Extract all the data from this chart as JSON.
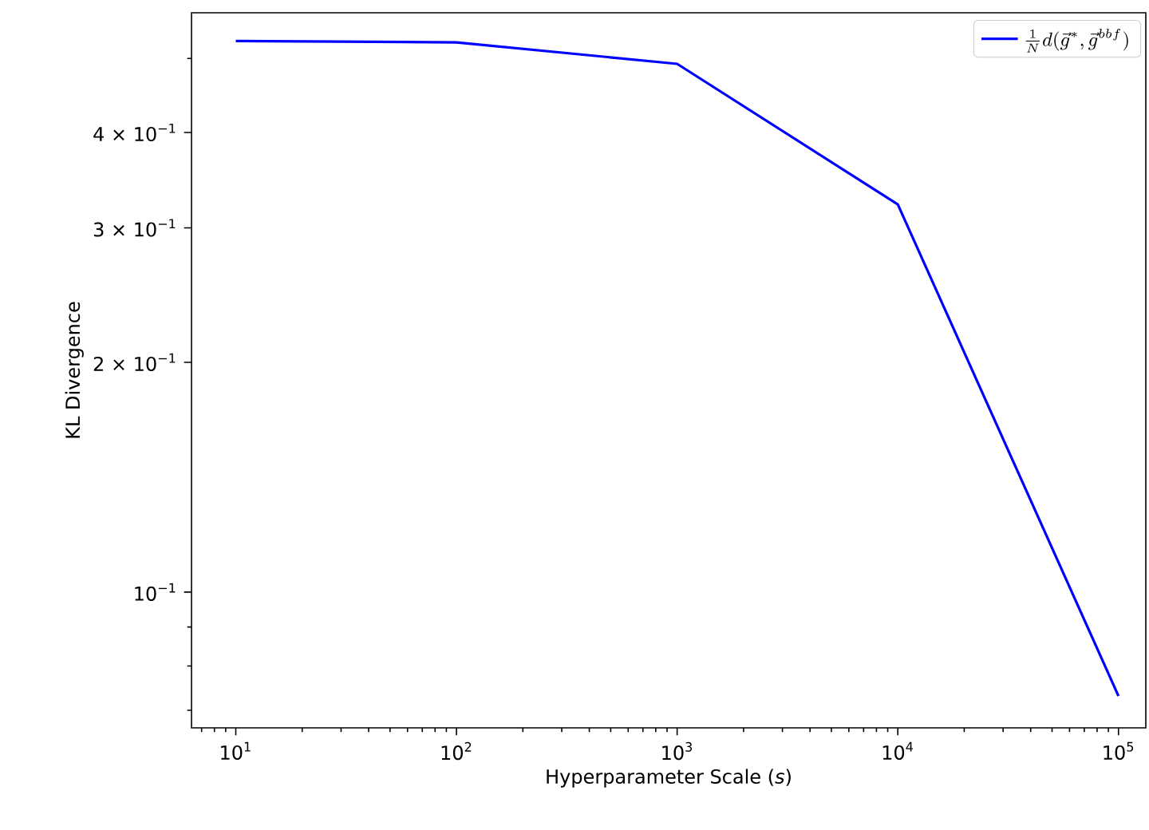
{
  "chart_data": {
    "type": "line",
    "xlabel": "Hyperparameter Scale (*s*)",
    "ylabel": "KL Divergence",
    "x": [
      10,
      100,
      1000,
      10000,
      100000
    ],
    "series": [
      {
        "name": "\\frac{1}{N}d(\\vec{g}^{*},\\vec{g}^{bbf})",
        "color": "#0000ff",
        "values": [
          0.527,
          0.525,
          0.492,
          0.322,
          0.0731
        ]
      }
    ],
    "log": "xy",
    "legend": "top right",
    "marker": "none",
    "line_style": "solid",
    "grid": false,
    "xlim": [
      6.3,
      133000
    ],
    "ylim": [
      0.0664,
      0.574
    ],
    "xticks": [
      {
        "value": 10,
        "label": "10$^{1}$"
      },
      {
        "value": 100,
        "label": "10$^{2}$"
      },
      {
        "value": 1000,
        "label": "10$^{3}$"
      },
      {
        "value": 10000,
        "label": "10$^{4}$"
      },
      {
        "value": 100000,
        "label": "10$^{5}$"
      },
      {
        "value": 7,
        "label": null
      },
      {
        "value": 8,
        "label": null
      },
      {
        "value": 9,
        "label": null
      },
      {
        "value": 20,
        "label": null
      },
      {
        "value": 30,
        "label": null
      },
      {
        "value": 40,
        "label": null
      },
      {
        "value": 50,
        "label": null
      },
      {
        "value": 60,
        "label": null
      },
      {
        "value": 70,
        "label": null
      },
      {
        "value": 80,
        "label": null
      },
      {
        "value": 90,
        "label": null
      },
      {
        "value": 200,
        "label": null
      },
      {
        "value": 300,
        "label": null
      },
      {
        "value": 400,
        "label": null
      },
      {
        "value": 500,
        "label": null
      },
      {
        "value": 600,
        "label": null
      },
      {
        "value": 700,
        "label": null
      },
      {
        "value": 800,
        "label": null
      },
      {
        "value": 900,
        "label": null
      },
      {
        "value": 2000,
        "label": null
      },
      {
        "value": 3000,
        "label": null
      },
      {
        "value": 4000,
        "label": null
      },
      {
        "value": 5000,
        "label": null
      },
      {
        "value": 6000,
        "label": null
      },
      {
        "value": 7000,
        "label": null
      },
      {
        "value": 8000,
        "label": null
      },
      {
        "value": 9000,
        "label": null
      },
      {
        "value": 20000,
        "label": null
      },
      {
        "value": 30000,
        "label": null
      },
      {
        "value": 40000,
        "label": null
      },
      {
        "value": 50000,
        "label": null
      },
      {
        "value": 60000,
        "label": null
      },
      {
        "value": 70000,
        "label": null
      },
      {
        "value": 80000,
        "label": null
      },
      {
        "value": 90000,
        "label": null
      }
    ],
    "yticks": [
      {
        "value": 0.1,
        "label": "10$^{−1}$"
      },
      {
        "value": 0.2,
        "label": "2 × 10$^{−1}$"
      },
      {
        "value": 0.3,
        "label": "3 × 10$^{−1}$"
      },
      {
        "value": 0.4,
        "label": "4 × 10$^{−1}$"
      },
      {
        "value": 0.07,
        "label": null
      },
      {
        "value": 0.08,
        "label": null
      },
      {
        "value": 0.09,
        "label": null
      },
      {
        "value": 0.5,
        "label": null
      }
    ]
  }
}
